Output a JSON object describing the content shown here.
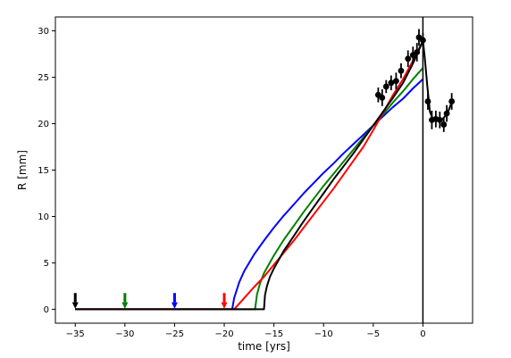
{
  "chart_data": {
    "type": "line",
    "title": "",
    "xlabel": "time [yrs]",
    "ylabel": "R [mm]",
    "xlim": [
      -37,
      5
    ],
    "ylim": [
      -1.5,
      31.5
    ],
    "xticks": [
      -35,
      -30,
      -25,
      -20,
      -15,
      -10,
      -5,
      0
    ],
    "yticks": [
      0,
      5,
      10,
      15,
      20,
      25,
      30
    ],
    "grid": false,
    "legend": "none",
    "series": [
      {
        "color": "#0000ff",
        "points": [
          [
            -35,
            0
          ],
          [
            -19.2,
            0
          ],
          [
            -19,
            1.2
          ],
          [
            -18.5,
            2.9
          ],
          [
            -18,
            4.1
          ],
          [
            -17,
            5.9
          ],
          [
            -16,
            7.4
          ],
          [
            -15,
            8.8
          ],
          [
            -14,
            10.1
          ],
          [
            -13,
            11.3
          ],
          [
            -12,
            12.5
          ],
          [
            -11,
            13.6
          ],
          [
            -10,
            14.7
          ],
          [
            -9,
            15.7
          ],
          [
            -8,
            16.8
          ],
          [
            -7,
            17.8
          ],
          [
            -6,
            18.8
          ],
          [
            -5,
            19.8
          ],
          [
            -4,
            20.8
          ],
          [
            -3,
            21.8
          ],
          [
            -2,
            22.7
          ],
          [
            -1,
            23.8
          ],
          [
            0,
            24.8
          ]
        ]
      },
      {
        "color": "#008000",
        "points": [
          [
            -35,
            0
          ],
          [
            -16.9,
            0
          ],
          [
            -16.7,
            1.6
          ],
          [
            -16.4,
            2.8
          ],
          [
            -16,
            3.9
          ],
          [
            -15,
            5.8
          ],
          [
            -14,
            7.5
          ],
          [
            -13,
            9.0
          ],
          [
            -12,
            10.5
          ],
          [
            -11,
            11.9
          ],
          [
            -10,
            13.3
          ],
          [
            -9,
            14.6
          ],
          [
            -8,
            15.9
          ],
          [
            -7,
            17.2
          ],
          [
            -6,
            18.5
          ],
          [
            -5,
            19.8
          ],
          [
            -4,
            21.0
          ],
          [
            -3,
            22.3
          ],
          [
            -2,
            23.5
          ],
          [
            -1,
            24.8
          ],
          [
            0,
            26.0
          ]
        ]
      },
      {
        "color": "#ff0000",
        "points": [
          [
            -35,
            0
          ],
          [
            -19.0,
            0
          ],
          [
            -18,
            1.2
          ],
          [
            -17,
            2.4
          ],
          [
            -16,
            3.5
          ],
          [
            -15,
            4.8
          ],
          [
            -14,
            6.1
          ],
          [
            -13,
            7.4
          ],
          [
            -12,
            8.8
          ],
          [
            -11,
            10.2
          ],
          [
            -10,
            11.6
          ],
          [
            -9,
            13.0
          ],
          [
            -8,
            14.5
          ],
          [
            -7,
            16.0
          ],
          [
            -6,
            17.5
          ],
          [
            -5,
            19.3
          ],
          [
            -4,
            21.2
          ],
          [
            -3,
            23.1
          ],
          [
            -2,
            24.8
          ],
          [
            -1,
            26.8
          ],
          [
            0,
            28.9
          ]
        ]
      },
      {
        "color": "#000000",
        "points": [
          [
            -35,
            0
          ],
          [
            -16.0,
            0
          ],
          [
            -15.9,
            1.5
          ],
          [
            -15.7,
            2.5
          ],
          [
            -15.4,
            3.5
          ],
          [
            -15,
            4.4
          ],
          [
            -14,
            6.3
          ],
          [
            -13,
            7.9
          ],
          [
            -12,
            9.5
          ],
          [
            -11,
            11.0
          ],
          [
            -10,
            12.5
          ],
          [
            -9,
            14.0
          ],
          [
            -8,
            15.4
          ],
          [
            -7,
            16.8
          ],
          [
            -6,
            18.3
          ],
          [
            -5,
            19.8
          ],
          [
            -4,
            21.3
          ],
          [
            -3,
            22.8
          ],
          [
            -2,
            24.4
          ],
          [
            -1,
            26.5
          ],
          [
            -0.3,
            28.2
          ],
          [
            0,
            29.0
          ],
          [
            0.2,
            27.0
          ],
          [
            0.45,
            24.0
          ],
          [
            0.7,
            21.3
          ],
          [
            1,
            20.5
          ],
          [
            1.5,
            20.3
          ],
          [
            2,
            20.5
          ],
          [
            2.5,
            21.2
          ],
          [
            2.9,
            22.3
          ]
        ]
      }
    ],
    "observations": [
      {
        "x": -4.5,
        "y": 23.1,
        "err": 0.8
      },
      {
        "x": -4.1,
        "y": 22.8,
        "err": 0.9
      },
      {
        "x": -3.7,
        "y": 24.0,
        "err": 0.7
      },
      {
        "x": -3.2,
        "y": 24.4,
        "err": 0.8
      },
      {
        "x": -2.7,
        "y": 24.6,
        "err": 0.9
      },
      {
        "x": -2.2,
        "y": 25.7,
        "err": 0.8
      },
      {
        "x": -1.5,
        "y": 27.0,
        "err": 0.9
      },
      {
        "x": -1.0,
        "y": 27.4,
        "err": 0.9
      },
      {
        "x": -0.6,
        "y": 27.7,
        "err": 1.0
      },
      {
        "x": -0.4,
        "y": 29.3,
        "err": 0.9
      },
      {
        "x": 0.0,
        "y": 29.0,
        "err": 0.8
      },
      {
        "x": 0.5,
        "y": 22.4,
        "err": 0.9
      },
      {
        "x": 0.9,
        "y": 20.4,
        "err": 1.0
      },
      {
        "x": 1.3,
        "y": 20.5,
        "err": 0.9
      },
      {
        "x": 1.7,
        "y": 20.4,
        "err": 0.9
      },
      {
        "x": 2.1,
        "y": 19.9,
        "err": 0.8
      },
      {
        "x": 2.4,
        "y": 21.1,
        "err": 0.9
      },
      {
        "x": 2.9,
        "y": 22.4,
        "err": 0.9
      }
    ],
    "vertical_line": {
      "x": 0,
      "color": "#000000"
    },
    "arrows": [
      {
        "x": -35,
        "color": "#000000"
      },
      {
        "x": -30,
        "color": "#008000"
      },
      {
        "x": -25,
        "color": "#0000ff"
      },
      {
        "x": -20,
        "color": "#ff0000"
      }
    ]
  }
}
